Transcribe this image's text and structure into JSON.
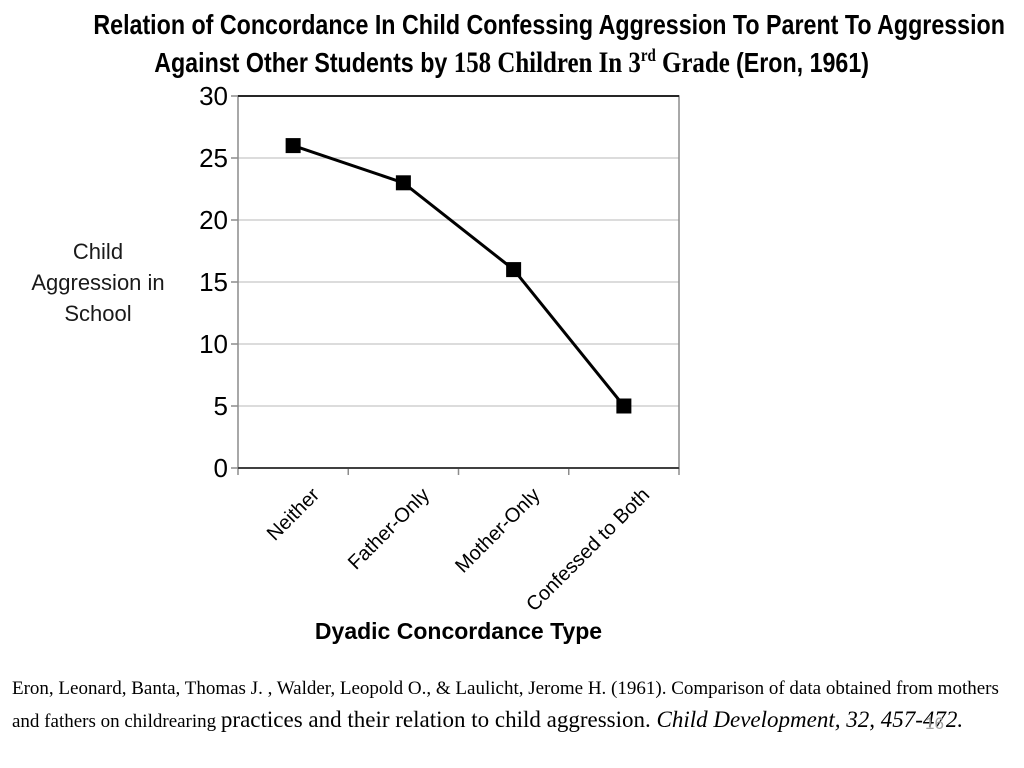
{
  "slide": {
    "title": {
      "line1": "Relation of Concordance In Child Confessing Aggression To Parent To Aggression",
      "line2_sans_a": "Against Other Students by ",
      "line2_serif_num": "158 Children In 3",
      "line2_sup": "rd",
      "line2_serif_b": " Grade ",
      "line2_sans_b": "(Eron, 1961)"
    },
    "citation": {
      "part1": "Eron, Leonard, Banta, Thomas J. , Walder, Leopold O., & Laulicht, Jerome H. (1961). Comparison of data obtained from mothers and fathers on childrearing ",
      "part2": "practices and their relation to child aggression. ",
      "part3_italic": "Child Development, 32, 457-472."
    },
    "page_number": "16"
  },
  "chart_data": {
    "type": "line",
    "categories": [
      "Neither",
      "Father-Only",
      "Mother-Only",
      "Confessed to Both"
    ],
    "values": [
      26,
      23,
      16,
      5
    ],
    "xlabel": "Dyadic Concordance Type",
    "ylabel": "Child Aggression in School",
    "ylim": [
      0,
      30
    ],
    "yticks": [
      0,
      5,
      10,
      15,
      20,
      25,
      30
    ],
    "grid": "horizontal",
    "legend": "none",
    "marker": "square",
    "colors": {
      "line": "#000000",
      "marker": "#000000",
      "gridline": "#c6c6c6",
      "axis": "#8c8c8c",
      "bottom_axis": "#404040",
      "top_border": "#262626",
      "page_number": "#a3a3a3"
    }
  }
}
